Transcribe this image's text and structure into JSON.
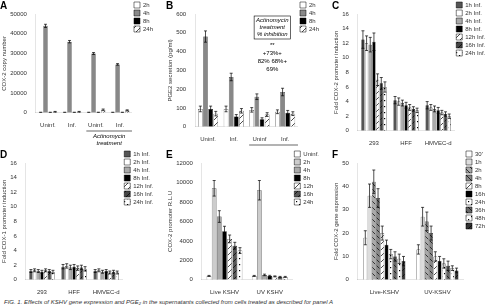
{
  "caption": "FIG. 1. Effects of KSHV gene expression and PGE₂ in the supernatants collected from cells treated as described for panel A",
  "chart_data": [
    {
      "type": "bar",
      "title": "A",
      "y_label": "COX-2 copy number",
      "categories": [
        "Uninf.",
        "Inf.",
        "Uninf.",
        "Inf."
      ],
      "series": [
        {
          "name": "2h",
          "color": "white",
          "values": [
            200,
            200,
            200,
            200
          ],
          "errors": [
            100,
            100,
            100,
            100
          ]
        },
        {
          "name": "4h",
          "color": "#888888",
          "values": [
            44000,
            36000,
            30000,
            24500
          ],
          "errors": [
            800,
            600,
            500,
            400
          ]
        },
        {
          "name": "8h",
          "color": "black",
          "values": [
            200,
            200,
            200,
            200
          ],
          "errors": [
            100,
            100,
            100,
            100
          ]
        },
        {
          "name": "24h",
          "color": "white",
          "values": [
            500,
            500,
            1500,
            1200
          ],
          "errors": [
            200,
            200,
            400,
            300
          ]
        }
      ],
      "ylim": [
        0,
        50000
      ],
      "yticks": [
        0,
        10000,
        20000,
        30000,
        40000,
        50000
      ],
      "grid": false,
      "legend": "upper right",
      "annotations": [
        "Actinomycin\ntreatment"
      ]
    },
    {
      "type": "bar",
      "title": "B",
      "y_label": "PGE2 secretion (pg/ml)",
      "categories": [
        "Uninf.",
        "Inf.",
        "Uninf",
        "Inf."
      ],
      "series": [
        {
          "name": "2h",
          "color": "white",
          "values": [
            95,
            95,
            90,
            80
          ],
          "errors": [
            15,
            15,
            12,
            10
          ]
        },
        {
          "name": "4h",
          "color": "#888888",
          "values": [
            480,
            265,
            160,
            185
          ],
          "errors": [
            30,
            20,
            15,
            20
          ]
        },
        {
          "name": "8h",
          "color": "black",
          "values": [
            95,
            55,
            40,
            75
          ],
          "errors": [
            15,
            10,
            8,
            12
          ]
        },
        {
          "name": "24h",
          "color": "white",
          "values": [
            70,
            85,
            65,
            70
          ],
          "errors": [
            12,
            12,
            10,
            10
          ]
        }
      ],
      "ylim": [
        0,
        600
      ],
      "yticks": [
        0,
        100,
        200,
        300,
        400,
        500,
        600
      ],
      "grid": false,
      "legend": "upper right",
      "annotations": [
        "Actinomycin\ntreatment\n% inhibition",
        "**",
        "+73%+",
        "82% 68%+",
        "69%"
      ]
    },
    {
      "type": "bar",
      "title": "C",
      "y_label": "Fold COX-2 promoter induction",
      "categories": [
        "293",
        "HFF",
        "HMVEC-d"
      ],
      "series": [
        {
          "name": "1h Inf.",
          "color": "#555555",
          "values": [
            12.5,
            4.2,
            3.5
          ],
          "errors": [
            1.2,
            0.5,
            0.5
          ]
        },
        {
          "name": "2h Inf.",
          "color": "white",
          "values": [
            12.0,
            4.0,
            3.2
          ],
          "errors": [
            1.0,
            0.5,
            0.4
          ]
        },
        {
          "name": "4h Inf.",
          "color": "#aaaaaa",
          "values": [
            11.8,
            3.8,
            3.0
          ],
          "errors": [
            1.0,
            0.4,
            0.4
          ]
        },
        {
          "name": "8h Inf.",
          "color": "black",
          "values": [
            12.2,
            3.5,
            2.8
          ],
          "errors": [
            1.2,
            0.4,
            0.4
          ]
        },
        {
          "name": "12h Inf.",
          "color": "white",
          "values": [
            7.0,
            3.2,
            2.5
          ],
          "errors": [
            0.8,
            0.4,
            0.3
          ]
        },
        {
          "name": "16h Inf.",
          "color": "#444444",
          "values": [
            6.5,
            3.0,
            2.3
          ],
          "errors": [
            0.8,
            0.3,
            0.3
          ]
        },
        {
          "name": "24h Inf.",
          "color": "white",
          "values": [
            6.0,
            2.8,
            2.0
          ],
          "errors": [
            0.7,
            0.3,
            0.3
          ]
        }
      ],
      "ylim": [
        0,
        16
      ],
      "yticks": [
        0,
        2,
        4,
        6,
        8,
        10,
        12,
        14,
        16
      ],
      "grid": false,
      "legend": "upper right"
    },
    {
      "type": "bar",
      "title": "D",
      "y_label": "Fold COX-1 promoter induction",
      "categories": [
        "293",
        "HFF",
        "HMVEC-d"
      ],
      "series": [
        {
          "name": "1h Inf.",
          "color": "#555555",
          "values": [
            1.2,
            1.8,
            1.2
          ],
          "errors": [
            0.2,
            0.3,
            0.2
          ]
        },
        {
          "name": "2h Inf.",
          "color": "white",
          "values": [
            1.3,
            1.9,
            1.3
          ],
          "errors": [
            0.2,
            0.3,
            0.2
          ]
        },
        {
          "name": "4h Inf.",
          "color": "#aaaaaa",
          "values": [
            1.2,
            1.7,
            1.1
          ],
          "errors": [
            0.2,
            0.3,
            0.2
          ]
        },
        {
          "name": "8h Inf.",
          "color": "black",
          "values": [
            1.1,
            1.8,
            1.2
          ],
          "errors": [
            0.2,
            0.3,
            0.2
          ]
        },
        {
          "name": "12h Inf.",
          "color": "white",
          "values": [
            1.3,
            1.6,
            1.0
          ],
          "errors": [
            0.2,
            0.3,
            0.2
          ]
        },
        {
          "name": "16h Inf.",
          "color": "#444444",
          "values": [
            1.2,
            1.7,
            1.1
          ],
          "errors": [
            0.2,
            0.3,
            0.2
          ]
        },
        {
          "name": "24h Inf.",
          "color": "white",
          "values": [
            1.1,
            1.5,
            1.0
          ],
          "errors": [
            0.2,
            0.3,
            0.2
          ]
        }
      ],
      "ylim": [
        0,
        16
      ],
      "yticks": [
        0,
        2,
        4,
        6,
        8,
        10,
        12,
        14,
        16
      ],
      "grid": false,
      "legend": "upper right"
    },
    {
      "type": "bar",
      "title": "E",
      "y_label": "COX-2 promoter R.L.U",
      "categories": [
        "Live KSHV",
        "UV KSHV"
      ],
      "series": [
        {
          "name": "Uninf.",
          "color": "white",
          "values": [
            400,
            400
          ],
          "errors": [
            50,
            50
          ]
        },
        {
          "name": "2h",
          "color": "#cccccc",
          "values": [
            9400,
            9200
          ],
          "errors": [
            800,
            1000
          ]
        },
        {
          "name": "4h",
          "color": "#aaaaaa",
          "values": [
            6500,
            500
          ],
          "errors": [
            600,
            80
          ]
        },
        {
          "name": "8h",
          "color": "black",
          "values": [
            5000,
            400
          ],
          "errors": [
            500,
            60
          ]
        },
        {
          "name": "12h",
          "color": "white",
          "values": [
            4200,
            350
          ],
          "errors": [
            400,
            50
          ]
        },
        {
          "name": "16h",
          "color": "#555555",
          "values": [
            3500,
            300
          ],
          "errors": [
            350,
            50
          ]
        },
        {
          "name": "24h",
          "color": "white",
          "values": [
            3000,
            300
          ],
          "errors": [
            300,
            50
          ]
        }
      ],
      "ylim": [
        0,
        12000
      ],
      "yticks": [
        0,
        2000,
        4000,
        6000,
        8000,
        10000,
        12000
      ],
      "grid": false,
      "legend": "upper right"
    },
    {
      "type": "bar",
      "title": "F",
      "y_label": "Fold COX-2 gene expression",
      "categories": [
        "Live-KSHV",
        "UV-KSHV"
      ],
      "series": [
        {
          "name": "30'",
          "color": "white",
          "values": [
            18,
            13
          ],
          "errors": [
            3,
            2
          ]
        },
        {
          "name": "1h",
          "color": "#dddddd",
          "values": [
            36,
            27
          ],
          "errors": [
            5,
            4
          ]
        },
        {
          "name": "2h",
          "color": "#aaaaaa",
          "values": [
            42,
            25
          ],
          "errors": [
            5,
            4
          ]
        },
        {
          "name": "4h",
          "color": "#888888",
          "values": [
            35,
            20
          ],
          "errors": [
            4,
            3
          ]
        },
        {
          "name": "8h",
          "color": "white",
          "values": [
            20,
            10
          ],
          "errors": [
            3,
            2
          ]
        },
        {
          "name": "16h",
          "color": "black",
          "values": [
            15,
            8
          ],
          "errors": [
            2,
            2
          ]
        },
        {
          "name": "24h",
          "color": "white",
          "values": [
            11,
            7
          ],
          "errors": [
            2,
            2
          ]
        },
        {
          "name": "36h",
          "color": "#666666",
          "values": [
            10,
            6
          ],
          "errors": [
            2,
            2
          ]
        },
        {
          "name": "48h",
          "color": "white",
          "values": [
            9,
            5
          ],
          "errors": [
            2,
            1
          ]
        },
        {
          "name": "72h",
          "color": "#333333",
          "values": [
            8,
            4
          ],
          "errors": [
            2,
            1
          ]
        }
      ],
      "ylim": [
        0,
        50
      ],
      "yticks": [
        0,
        10,
        20,
        30,
        40,
        50
      ],
      "grid": false,
      "legend": "upper right"
    }
  ]
}
